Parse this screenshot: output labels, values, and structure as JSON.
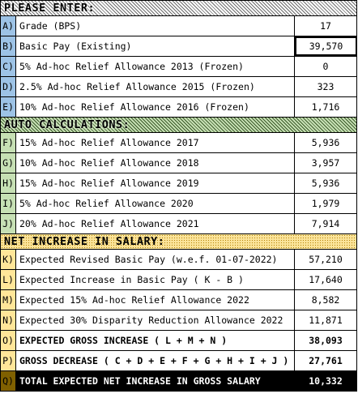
{
  "sections": {
    "enter": {
      "title": "PLEASE ENTER:"
    },
    "auto": {
      "title": "AUTO CALCULATIONS:"
    },
    "net": {
      "title": "NET INCREASE IN SALARY:"
    }
  },
  "enter_rows": [
    {
      "letter": "A)",
      "label": "Grade (BPS)",
      "value": "17"
    },
    {
      "letter": "B)",
      "label": "Basic Pay (Existing)",
      "value": "39,570"
    },
    {
      "letter": "C)",
      "label": "5% Ad-hoc Relief Allowance 2013 (Frozen)",
      "value": "0"
    },
    {
      "letter": "D)",
      "label": "2.5% Ad-hoc Relief Allowance 2015 (Frozen)",
      "value": "323"
    },
    {
      "letter": "E)",
      "label": "10% Ad-hoc Relief Allowance 2016 (Frozen)",
      "value": "1,716"
    }
  ],
  "auto_rows": [
    {
      "letter": "F)",
      "label": "15% Ad-hoc Relief Allowance 2017",
      "value": "5,936"
    },
    {
      "letter": "G)",
      "label": "10% Ad-hoc Relief Allowance 2018",
      "value": "3,957"
    },
    {
      "letter": "H)",
      "label": "15% Ad-hoc Relief Allowance 2019",
      "value": "5,936"
    },
    {
      "letter": "I)",
      "label": "5% Ad-hoc Relief Allowance 2020",
      "value": "1,979"
    },
    {
      "letter": "J)",
      "label": "20% Ad-hoc Relief Allowance 2021",
      "value": "7,914"
    }
  ],
  "net_rows": [
    {
      "letter": "K)",
      "label": "Expected Revised Basic Pay (w.e.f. 01-07-2022)",
      "value": "57,210"
    },
    {
      "letter": "L)",
      "label": "Expected Increase in Basic Pay ( K - B )",
      "value": "17,640"
    },
    {
      "letter": "M)",
      "label": "Expected 15% Ad-hoc Relief Allowance 2022",
      "value": "8,582"
    },
    {
      "letter": "N)",
      "label": "Expected 30% Disparity Reduction Allowance 2022",
      "value": "11,871"
    },
    {
      "letter": "O)",
      "label": "EXPECTED GROSS INCREASE ( L + M + N )",
      "value": "38,093"
    },
    {
      "letter": "P)",
      "label": "GROSS DECREASE ( C + D + E + F + G + H + I + J )",
      "value": "27,761"
    },
    {
      "letter": "Q)",
      "label": "TOTAL EXPECTED NET INCREASE IN GROSS SALARY",
      "value": "10,332"
    }
  ],
  "colors": {
    "letter_blue": "#9dc3e6",
    "letter_green": "#c6e0b4",
    "letter_yellow": "#ffe699",
    "total_bg": "#000000"
  }
}
